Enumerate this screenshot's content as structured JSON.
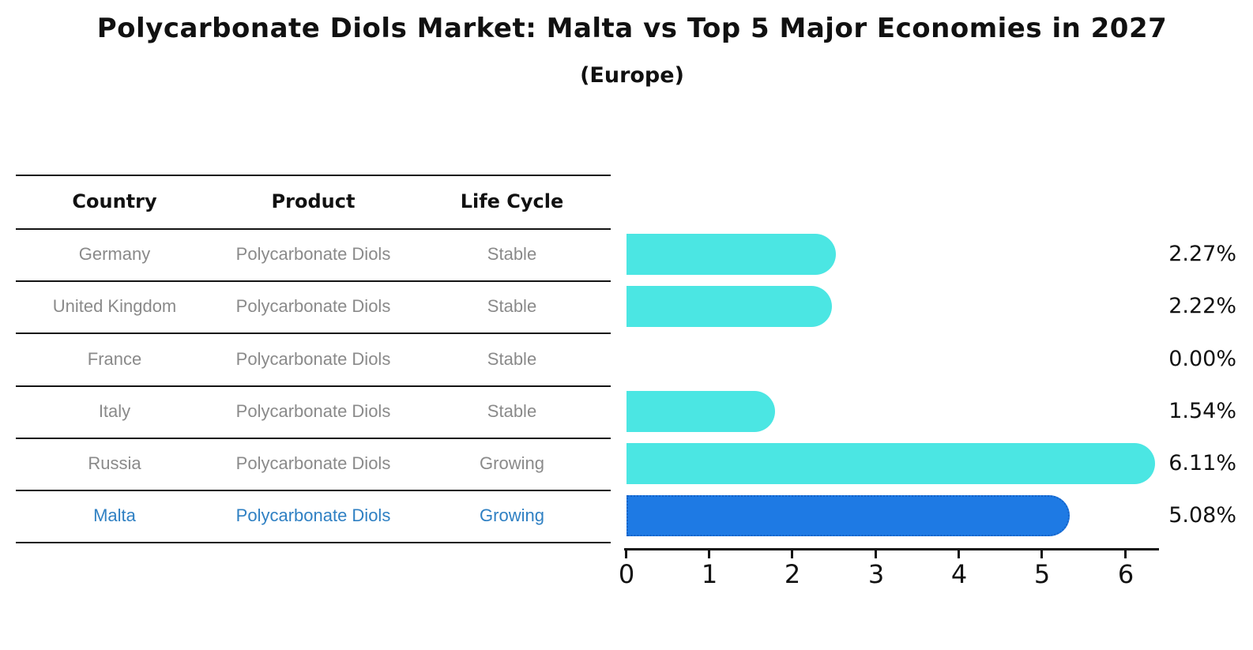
{
  "header": {
    "title": "Polycarbonate Diols Market: Malta vs Top 5 Major Economies in 2027",
    "subtitle": "(Europe)"
  },
  "table": {
    "columns": [
      "Country",
      "Product",
      "Life Cycle"
    ],
    "rows": [
      {
        "country": "Germany",
        "product": "Polycarbonate Diols",
        "life_cycle": "Stable",
        "highlight": false
      },
      {
        "country": "United Kingdom",
        "product": "Polycarbonate Diols",
        "life_cycle": "Stable",
        "highlight": false
      },
      {
        "country": "France",
        "product": "Polycarbonate Diols",
        "life_cycle": "Stable",
        "highlight": false
      },
      {
        "country": "Italy",
        "product": "Polycarbonate Diols",
        "life_cycle": "Stable",
        "highlight": false
      },
      {
        "country": "Russia",
        "product": "Polycarbonate Diols",
        "life_cycle": "Growing",
        "highlight": false
      },
      {
        "country": "Malta",
        "product": "Polycarbonate Diols",
        "life_cycle": "Growing",
        "highlight": true
      }
    ]
  },
  "chart_data": {
    "type": "bar",
    "orientation": "horizontal",
    "title": "Polycarbonate Diols Market: Malta vs Top 5 Major Economies in 2027",
    "subtitle": "(Europe)",
    "categories": [
      "Germany",
      "United Kingdom",
      "France",
      "Italy",
      "Russia",
      "Malta"
    ],
    "values": [
      2.27,
      2.22,
      0.0,
      1.54,
      6.11,
      5.08
    ],
    "value_labels": [
      "2.27%",
      "2.22%",
      "0.00%",
      "1.54%",
      "6.11%",
      "5.08%"
    ],
    "xlabel": "",
    "ylabel": "",
    "xlim": [
      0,
      6.4
    ],
    "xticks": [
      "0",
      "1",
      "2",
      "3",
      "4",
      "5",
      "6"
    ],
    "grid": false,
    "legend": false,
    "bar_color": "#4be6e3",
    "highlight_index": 5,
    "highlight_bar_color": "#1e7ae4",
    "highlight_border_color": "#1563c8",
    "row_text_color": "#8a8a8a",
    "highlight_text_color": "#2f80c3"
  }
}
